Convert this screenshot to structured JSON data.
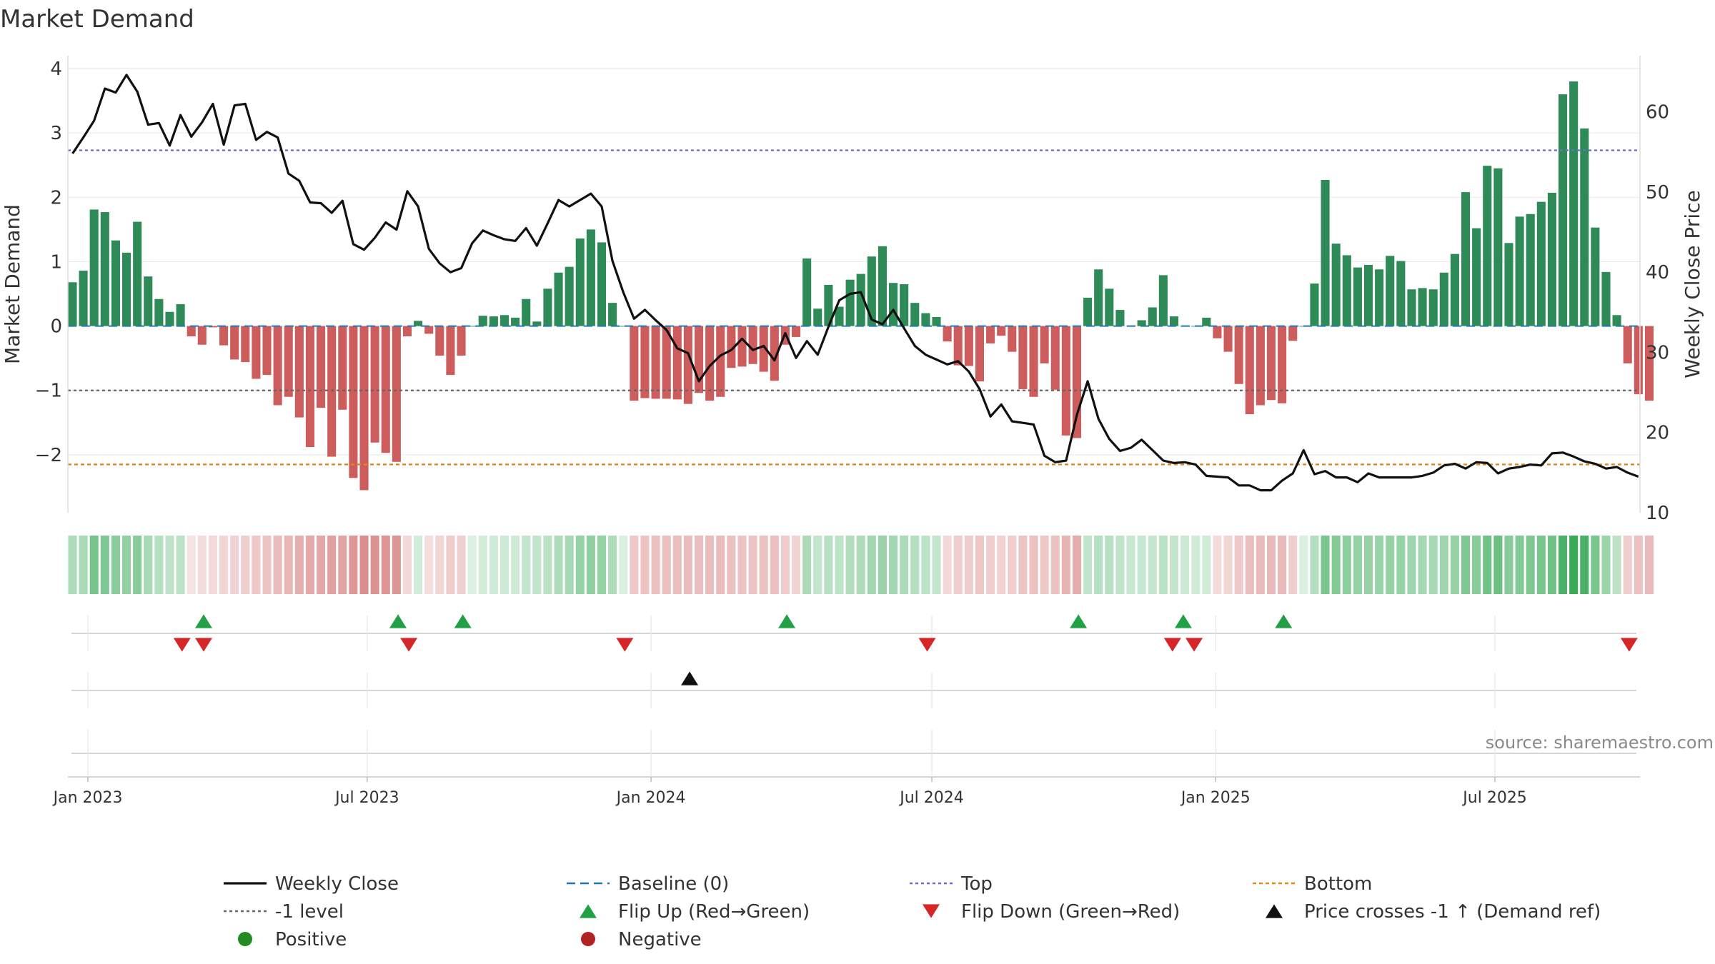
{
  "chart_data": {
    "type": "bar+line",
    "title": "Market Demand",
    "ylabel_left": "Market Demand",
    "ylabel_right": "Weekly Close Price",
    "ylim_left": [
      -2.9,
      4.2
    ],
    "ylim_right": [
      10,
      67
    ],
    "yticks_left": [
      4,
      3,
      2,
      1,
      0,
      -1,
      -2
    ],
    "ytick_labels_left": [
      "4",
      "3",
      "2",
      "1",
      "0",
      "−1",
      "−2"
    ],
    "yticks_right": [
      60,
      50,
      40,
      30,
      20,
      10
    ],
    "ytick_labels_right": [
      "60",
      "50",
      "40",
      "30",
      "20",
      "10"
    ],
    "x_start": "2022-12-19",
    "x_end": "2025-10-03",
    "xticks": [
      {
        "date": "2023-01-01",
        "label": "Jan 2023"
      },
      {
        "date": "2023-07-01",
        "label": "Jul 2023"
      },
      {
        "date": "2024-01-01",
        "label": "Jan 2024"
      },
      {
        "date": "2024-07-01",
        "label": "Jul 2024"
      },
      {
        "date": "2025-01-01",
        "label": "Jan 2025"
      },
      {
        "date": "2025-07-01",
        "label": "Jul 2025"
      }
    ],
    "first_week": "2022-12-22",
    "demand": [
      0.68,
      0.86,
      1.81,
      1.77,
      1.33,
      1.14,
      1.62,
      0.77,
      0.42,
      0.22,
      0.34,
      -0.16,
      -0.29,
      -0.02,
      -0.3,
      -0.52,
      -0.56,
      -0.82,
      -0.76,
      -1.23,
      -1.1,
      -1.42,
      -1.88,
      -1.27,
      -2.03,
      -1.3,
      -2.36,
      -2.55,
      -1.81,
      -1.97,
      -2.11,
      -0.16,
      0.08,
      -0.12,
      -0.46,
      -0.76,
      -0.46,
      0.0,
      0.16,
      0.15,
      0.17,
      0.13,
      0.42,
      0.07,
      0.58,
      0.83,
      0.92,
      1.36,
      1.5,
      1.3,
      0.36,
      0.0,
      -1.16,
      -1.12,
      -1.13,
      -1.13,
      -1.14,
      -1.21,
      -1.04,
      -1.16,
      -1.1,
      -0.65,
      -0.63,
      -0.59,
      -0.71,
      -0.85,
      -0.29,
      -0.17,
      1.05,
      0.27,
      0.64,
      0.3,
      0.72,
      0.81,
      1.08,
      1.24,
      0.67,
      0.65,
      0.36,
      0.2,
      0.14,
      -0.24,
      -0.61,
      -0.62,
      -0.86,
      -0.27,
      -0.15,
      -0.4,
      -0.98,
      -1.1,
      -0.58,
      -0.99,
      -1.7,
      -1.74,
      0.44,
      0.88,
      0.58,
      0.25,
      0.0,
      0.09,
      0.29,
      0.79,
      0.15,
      0.0,
      0.0,
      0.13,
      -0.19,
      -0.4,
      -0.9,
      -1.37,
      -1.23,
      -1.15,
      -1.2,
      -0.23,
      0.0,
      0.66,
      2.27,
      1.28,
      1.1,
      0.91,
      0.95,
      0.88,
      1.09,
      1.01,
      0.57,
      0.59,
      0.57,
      0.83,
      1.12,
      2.08,
      1.52,
      2.49,
      2.45,
      1.29,
      1.7,
      1.74,
      1.93,
      2.07,
      3.6,
      3.8,
      3.07,
      1.53,
      0.84,
      0.17,
      -0.58,
      -1.06,
      -1.16
    ],
    "close": [
      54.8,
      56.8,
      58.9,
      62.9,
      62.4,
      64.6,
      62.5,
      58.4,
      58.6,
      55.8,
      59.6,
      56.9,
      58.7,
      61.0,
      55.9,
      60.8,
      61.0,
      56.5,
      57.5,
      56.8,
      52.3,
      51.4,
      48.7,
      48.6,
      47.4,
      48.9,
      43.5,
      42.8,
      44.3,
      46.2,
      45.3,
      50.1,
      48.2,
      42.9,
      41.1,
      40.0,
      40.5,
      43.6,
      45.2,
      44.6,
      44.1,
      43.9,
      45.5,
      43.3,
      46.1,
      49.0,
      48.2,
      49.0,
      49.8,
      48.2,
      41.4,
      37.5,
      34.2,
      35.3,
      34.0,
      32.8,
      30.5,
      29.9,
      26.4,
      28.3,
      29.6,
      30.3,
      31.7,
      30.3,
      30.8,
      29.0,
      32.4,
      29.3,
      31.4,
      29.7,
      33.2,
      36.5,
      37.3,
      37.5,
      34.1,
      33.5,
      35.3,
      33.0,
      30.8,
      29.7,
      29.1,
      28.5,
      28.9,
      27.6,
      25.4,
      22.0,
      23.5,
      21.4,
      21.2,
      21.0,
      17.1,
      16.3,
      16.5,
      22.2,
      26.4,
      21.7,
      19.2,
      17.7,
      18.1,
      19.1,
      17.8,
      16.5,
      16.2,
      16.3,
      16.0,
      14.6,
      14.5,
      14.4,
      13.4,
      13.4,
      12.8,
      12.8,
      14.0,
      14.9,
      17.8,
      14.8,
      15.2,
      14.4,
      14.4,
      13.8,
      14.9,
      14.4,
      14.4,
      14.4,
      14.4,
      14.6,
      15.0,
      15.9,
      16.1,
      15.5,
      16.3,
      16.2,
      14.9,
      15.5,
      15.7,
      16.0,
      15.9,
      17.4,
      17.5,
      17.0,
      16.4,
      16.1,
      15.5,
      15.7,
      15.0,
      14.5
    ],
    "shade_values": [
      0.58,
      0.65,
      1.29,
      1.16,
      1.02,
      0.92,
      1.05,
      0.68,
      0.46,
      0.36,
      0.4,
      -0.05,
      -0.14,
      -0.2,
      -0.27,
      -0.33,
      -0.38,
      -0.47,
      -0.55,
      -0.7,
      -0.78,
      -0.92,
      -1.04,
      -1.06,
      -1.16,
      -1.12,
      -1.34,
      -1.46,
      -1.41,
      -1.39,
      -1.36,
      -0.2,
      0.12,
      -0.1,
      -0.28,
      -0.42,
      -0.35,
      0.0,
      0.12,
      0.14,
      0.16,
      0.16,
      0.3,
      0.3,
      0.42,
      0.58,
      0.66,
      0.86,
      0.95,
      0.9,
      0.55,
      0.0,
      -0.48,
      -0.59,
      -0.63,
      -0.64,
      -0.66,
      -0.7,
      -0.68,
      -0.7,
      -0.7,
      -0.6,
      -0.58,
      -0.56,
      -0.6,
      -0.64,
      -0.42,
      -0.3,
      0.6,
      0.3,
      0.44,
      0.36,
      0.52,
      0.58,
      0.72,
      0.82,
      0.7,
      0.62,
      0.5,
      0.38,
      0.3,
      -0.2,
      -0.38,
      -0.42,
      -0.52,
      -0.4,
      -0.32,
      -0.38,
      -0.56,
      -0.62,
      -0.5,
      -0.6,
      -0.84,
      -0.94,
      0.34,
      0.5,
      0.44,
      0.34,
      0.24,
      0.24,
      0.28,
      0.42,
      0.3,
      0.2,
      0.14,
      0.14,
      -0.16,
      -0.28,
      -0.48,
      -0.68,
      -0.72,
      -0.74,
      -0.74,
      -0.4,
      0.0,
      0.5,
      1.22,
      1.1,
      0.96,
      0.88,
      0.86,
      0.84,
      0.9,
      0.88,
      0.74,
      0.7,
      0.66,
      0.74,
      0.86,
      1.16,
      1.06,
      1.36,
      1.38,
      1.06,
      1.14,
      1.18,
      1.26,
      1.32,
      1.82,
      2.02,
      1.82,
      1.22,
      0.8,
      0.4,
      -0.4,
      -0.62,
      -0.72
    ],
    "flip_up_weeks": [
      6,
      15,
      18,
      32,
      45,
      50,
      55
    ],
    "flip_down_weeks": [
      5,
      7,
      16,
      26,
      38,
      49,
      50,
      69
    ],
    "flip_up_dates": [
      "2023-03-17",
      "2023-07-21",
      "2023-09-01",
      "2024-03-29",
      "2024-10-04",
      "2024-12-11",
      "2025-02-14"
    ],
    "flip_down_dates": [
      "2023-03-03",
      "2023-03-17",
      "2023-07-28",
      "2023-12-15",
      "2024-06-28",
      "2024-12-04",
      "2024-12-18",
      "2025-09-26"
    ],
    "price_cross_dates": [
      "2024-01-26"
    ],
    "levels": {
      "top": 2.73,
      "minus_one": -1.0,
      "bottom": -2.15,
      "baseline": 0.0
    },
    "source_text": "source: sharemaestro.com",
    "colors": {
      "positive_bar": "#2e8b57",
      "negative_bar": "#cd5c5c",
      "close_line": "#111111",
      "baseline": "#1f77b4",
      "top": "#6b6bd6",
      "minus_one": "#666666",
      "bottom": "#e08a1e",
      "flip_up": "#22a045",
      "flip_down": "#d62728",
      "cross": "#111111",
      "positive_dot": "#228b22",
      "negative_dot": "#b22222"
    },
    "legend": [
      {
        "key": "close",
        "label": "Weekly Close"
      },
      {
        "key": "baseline",
        "label": "Baseline (0)"
      },
      {
        "key": "top",
        "label": "Top"
      },
      {
        "key": "bottom",
        "label": "Bottom"
      },
      {
        "key": "minus_one",
        "label": "-1 level"
      },
      {
        "key": "flip_up",
        "label": "Flip Up (Red→Green)"
      },
      {
        "key": "flip_down",
        "label": "Flip Down (Green→Red)"
      },
      {
        "key": "cross",
        "label": "Price crosses -1 ↑ (Demand ref)"
      },
      {
        "key": "positive",
        "label": "Positive"
      },
      {
        "key": "negative",
        "label": "Negative"
      }
    ]
  }
}
